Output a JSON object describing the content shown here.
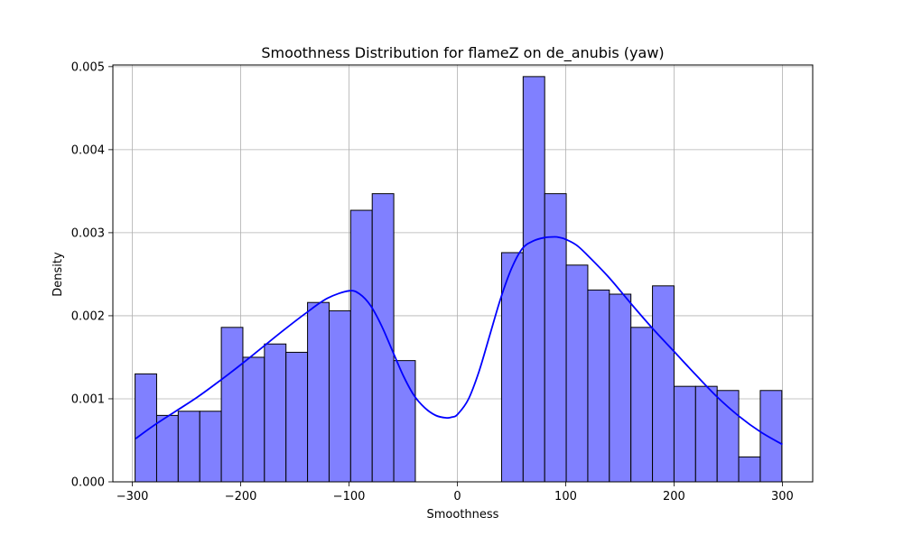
{
  "chart_data": {
    "type": "bar",
    "title": "Smoothness Distribution for flameZ on de_anubis (yaw)",
    "xlabel": "Smoothness",
    "ylabel": "Density",
    "xlim": [
      -318,
      328
    ],
    "ylim": [
      0,
      0.00502
    ],
    "x_ticks": [
      -300,
      -200,
      -100,
      0,
      100,
      200,
      300
    ],
    "x_tick_labels": [
      "−300",
      "−200",
      "−100",
      "0",
      "100",
      "200",
      "300"
    ],
    "y_ticks": [
      0,
      0.001,
      0.002,
      0.003,
      0.004,
      0.005
    ],
    "y_tick_labels": [
      "0.000",
      "0.001",
      "0.002",
      "0.003",
      "0.004",
      "0.005"
    ],
    "grid": true,
    "bin_edges": [
      -297.5,
      -277.6,
      -257.7,
      -237.8,
      -217.9,
      -198.0,
      -178.1,
      -158.2,
      -138.3,
      -118.4,
      -98.5,
      -78.6,
      -58.7,
      -38.8,
      -18.9,
      1.0,
      20.9,
      40.8,
      60.7,
      80.6,
      100.5,
      120.4,
      140.3,
      160.2,
      180.1,
      200.0,
      219.9,
      239.8,
      259.7,
      279.6,
      299.5
    ],
    "values": [
      0.0013,
      0.0008,
      0.00085,
      0.00085,
      0.00186,
      0.0015,
      0.00166,
      0.00156,
      0.00216,
      0.00206,
      0.00327,
      0.00347,
      0.00146,
      0,
      0,
      0,
      0,
      0.00276,
      0.00488,
      0.00347,
      0.00261,
      0.00231,
      0.00226,
      0.00186,
      0.00236,
      0.00115,
      0.00115,
      0.0011,
      0.0003,
      0.0011
    ],
    "kde": {
      "x": [
        -297,
        -280,
        -260,
        -240,
        -220,
        -200,
        -180,
        -160,
        -140,
        -120,
        -100,
        -90,
        -80,
        -70,
        -60,
        -50,
        -40,
        -30,
        -20,
        -10,
        -5,
        0,
        10,
        20,
        30,
        40,
        50,
        60,
        70,
        80,
        90,
        95,
        100,
        110,
        120,
        140,
        160,
        180,
        200,
        220,
        240,
        260,
        280,
        300
      ],
      "y": [
        0.00052,
        0.00068,
        0.00085,
        0.00102,
        0.00121,
        0.00141,
        0.00162,
        0.00183,
        0.00203,
        0.00221,
        0.0023,
        0.00226,
        0.00212,
        0.00188,
        0.00158,
        0.00128,
        0.00104,
        0.00089,
        0.0008,
        0.00077,
        0.00078,
        0.00081,
        0.00099,
        0.00133,
        0.00177,
        0.00221,
        0.00257,
        0.00281,
        0.0029,
        0.00294,
        0.00295,
        0.00294,
        0.00292,
        0.00285,
        0.00273,
        0.00246,
        0.00215,
        0.00185,
        0.00157,
        0.00129,
        0.00102,
        0.00079,
        0.0006,
        0.00045
      ]
    },
    "colors": {
      "bar_fill": "#8080ff",
      "bar_edge": "#000000",
      "kde_line": "#0000ff",
      "grid": "#b0b0b0"
    }
  }
}
